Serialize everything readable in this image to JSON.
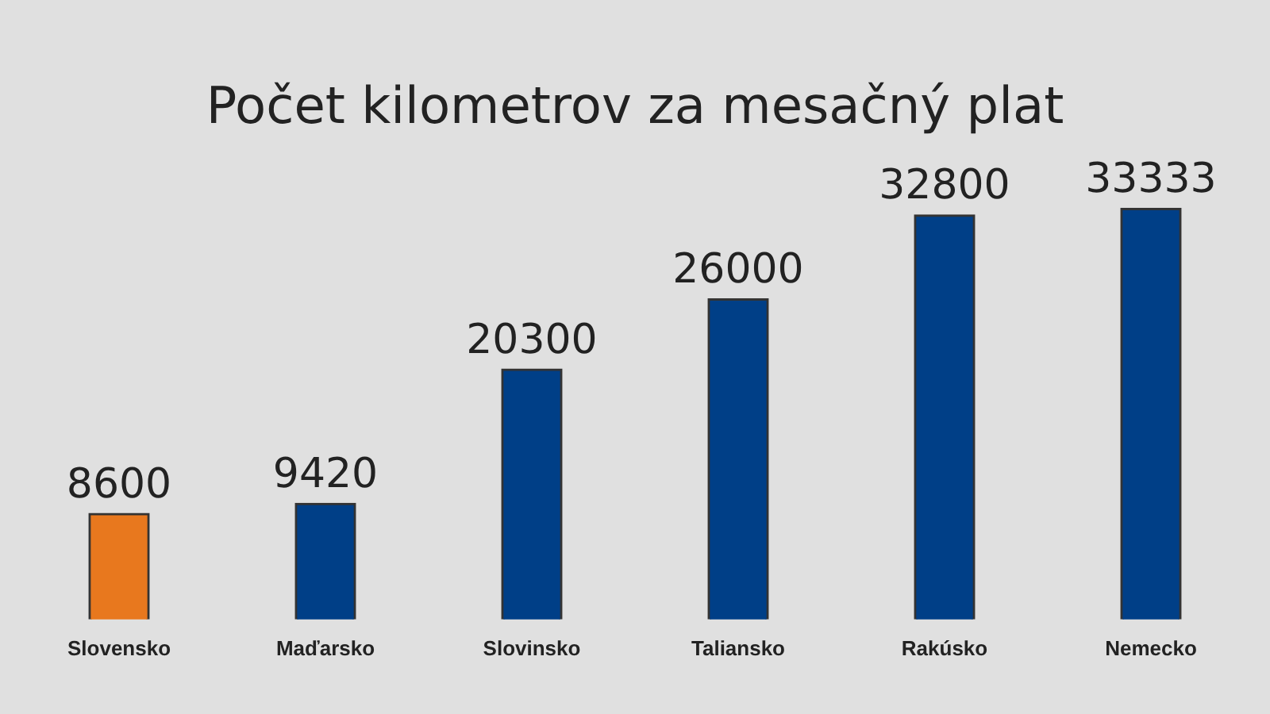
{
  "chart_data": {
    "type": "bar",
    "title": "Počet kilometrov za mesačný plat",
    "categories": [
      "Slovensko",
      "Maďarsko",
      "Slovinsko",
      "Taliansko",
      "Rakúsko",
      "Nemecko"
    ],
    "values": [
      8600,
      9420,
      20300,
      26000,
      32800,
      33333
    ],
    "colors": [
      "#e8781e",
      "#003f87",
      "#003f87",
      "#003f87",
      "#003f87",
      "#003f87"
    ],
    "data_labels": true,
    "grid": false,
    "legend": false,
    "tick_labels": "x"
  }
}
